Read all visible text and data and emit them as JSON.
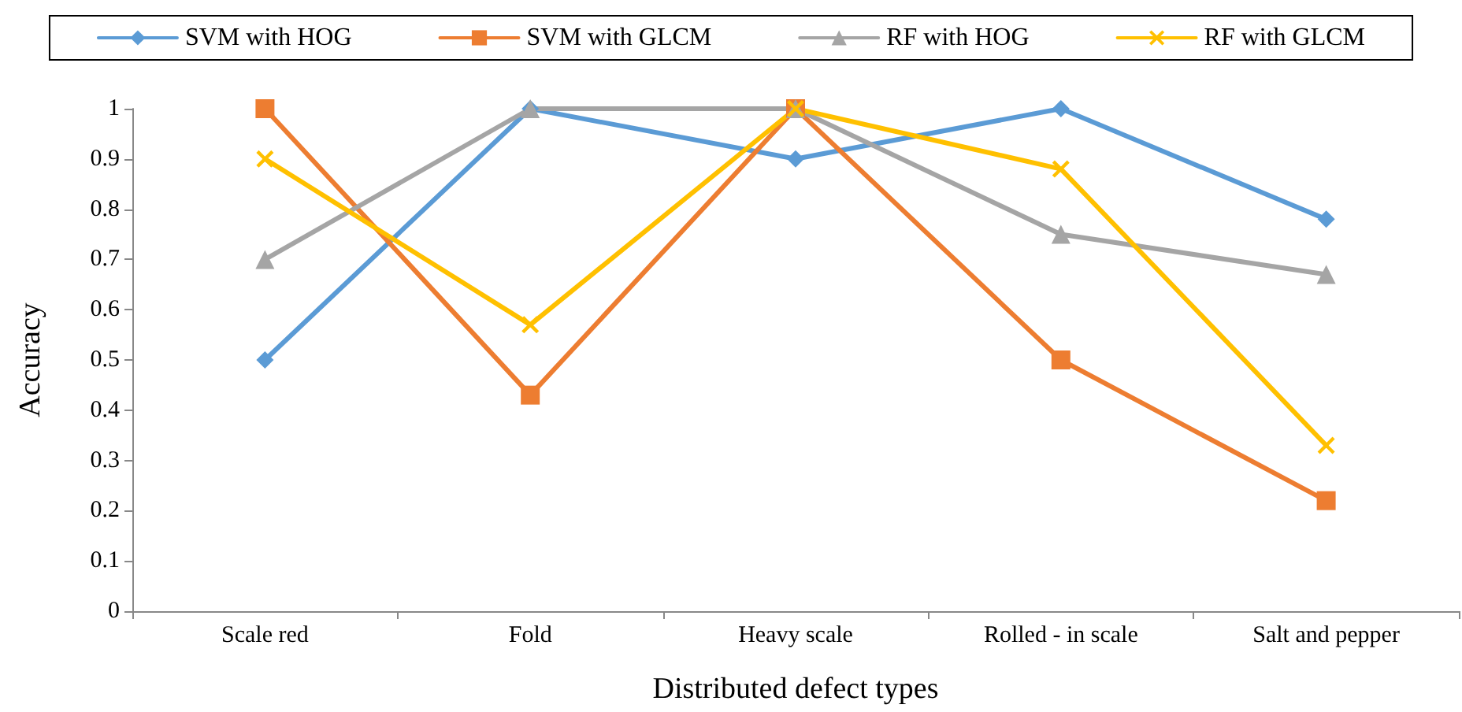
{
  "chart_data": {
    "type": "line",
    "xlabel": "Distributed defect types",
    "ylabel": "Accuracy",
    "categories": [
      "Scale red",
      "Fold",
      "Heavy scale",
      "Rolled - in scale",
      "Salt and pepper"
    ],
    "series": [
      {
        "name": "SVM with HOG",
        "color": "#5b9bd5",
        "marker": "diamond",
        "values": [
          0.5,
          1,
          0.9,
          1,
          0.78
        ]
      },
      {
        "name": "SVM with GLCM",
        "color": "#ed7d31",
        "marker": "square",
        "values": [
          1,
          0.43,
          1,
          0.5,
          0.22
        ]
      },
      {
        "name": "RF with HOG",
        "color": "#a5a5a5",
        "marker": "triangle",
        "values": [
          0.7,
          1,
          1,
          0.75,
          0.67
        ]
      },
      {
        "name": "RF with GLCM",
        "color": "#ffc000",
        "marker": "cross",
        "values": [
          0.9,
          0.57,
          1,
          0.88,
          0.33
        ]
      }
    ],
    "ylim": [
      0,
      1
    ],
    "yticks": [
      0,
      0.1,
      0.2,
      0.3,
      0.4,
      0.5,
      0.6,
      0.7,
      0.8,
      0.9,
      1
    ],
    "grid": false,
    "legend": "top",
    "line_style": "solid"
  }
}
